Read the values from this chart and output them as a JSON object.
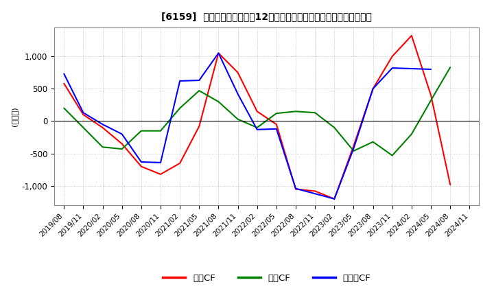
{
  "title": "[6159]  キャッシュフローの12か月移動合計の対前年同期増減額の推移",
  "ylabel": "(百万円)",
  "ylim": [
    -1300,
    1450
  ],
  "yticks": [
    -1000,
    -500,
    0,
    500,
    1000
  ],
  "legend": [
    "営業CF",
    "投資CF",
    "フリーCF"
  ],
  "colors": {
    "営業CF": "#ff0000",
    "投資CF": "#008000",
    "フリーCF": "#0000ff"
  },
  "dates": [
    "2019/08",
    "2019/11",
    "2020/02",
    "2020/05",
    "2020/08",
    "2020/11",
    "2021/02",
    "2021/05",
    "2021/08",
    "2021/11",
    "2022/02",
    "2022/05",
    "2022/08",
    "2022/11",
    "2023/02",
    "2023/05",
    "2023/08",
    "2023/11",
    "2024/02",
    "2024/05",
    "2024/08",
    "2024/11"
  ],
  "営業CF": [
    580,
    100,
    -100,
    -350,
    -700,
    -820,
    -650,
    -80,
    1050,
    750,
    150,
    -50,
    -1050,
    -1080,
    -1200,
    -380,
    500,
    1000,
    1320,
    400,
    -980,
    null
  ],
  "投資CF": [
    200,
    -100,
    -400,
    -430,
    -150,
    -150,
    200,
    470,
    300,
    30,
    -100,
    120,
    150,
    130,
    -100,
    -460,
    -320,
    -530,
    -200,
    320,
    830,
    null
  ],
  "フリーCF": [
    730,
    130,
    -50,
    -200,
    -630,
    -640,
    620,
    630,
    1050,
    420,
    -130,
    -120,
    -1040,
    -1120,
    -1200,
    -420,
    500,
    820,
    810,
    800,
    null,
    null
  ],
  "background_color": "#ffffff",
  "grid_color": "#bbbbbb",
  "linewidth": 1.5
}
